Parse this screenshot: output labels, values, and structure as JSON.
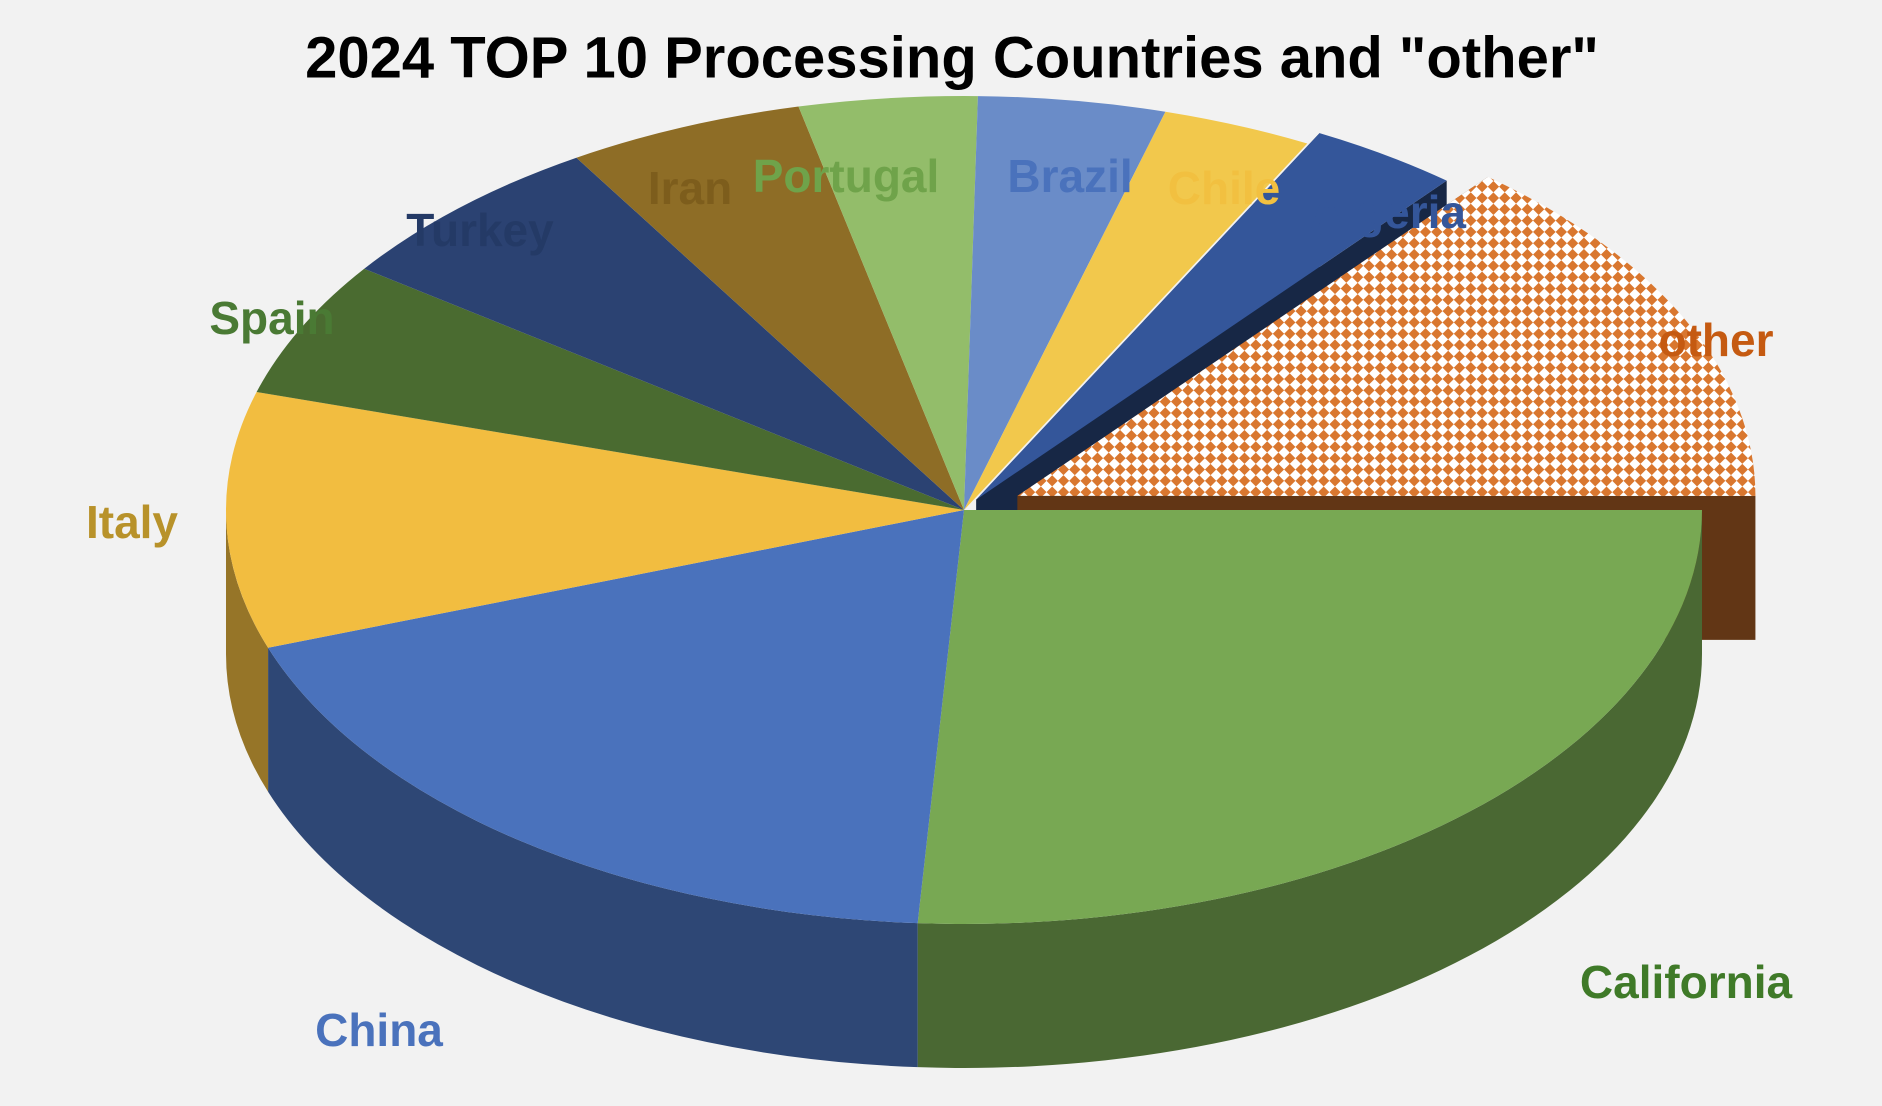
{
  "chart_data": {
    "type": "pie3d",
    "title": "2024 TOP 10 Processing Countries and \"other\"",
    "categories": [
      "California",
      "China",
      "Italy",
      "Spain",
      "Turkey",
      "Iran",
      "Portugal",
      "Brazil",
      "Chile",
      "Algeria",
      "other"
    ],
    "values": [
      26,
      18.6,
      10,
      5.3,
      6.3,
      5.2,
      3.9,
      4.1,
      3.3,
      3.3,
      14
    ],
    "colors": [
      "#78a853",
      "#4a72bc",
      "#f2bd40",
      "#4a6b30",
      "#2b4272",
      "#8e6d26",
      "#93bd6a",
      "#6a8cc8",
      "#f2c84c",
      "#34569a",
      "#d9772f"
    ],
    "label_colors": [
      "#3f7a28",
      "#4a72bc",
      "#b8922a",
      "#4a7a34",
      "#243a66",
      "#7d5d1c",
      "#6fa34a",
      "#4a72bc",
      "#f2c040",
      "#34569a",
      "#c55a11"
    ],
    "explode": [
      0,
      0,
      0,
      0,
      0,
      0,
      0,
      0,
      0,
      0.03,
      0.08
    ],
    "hatched": [
      false,
      false,
      false,
      false,
      false,
      false,
      false,
      false,
      false,
      false,
      true
    ]
  }
}
